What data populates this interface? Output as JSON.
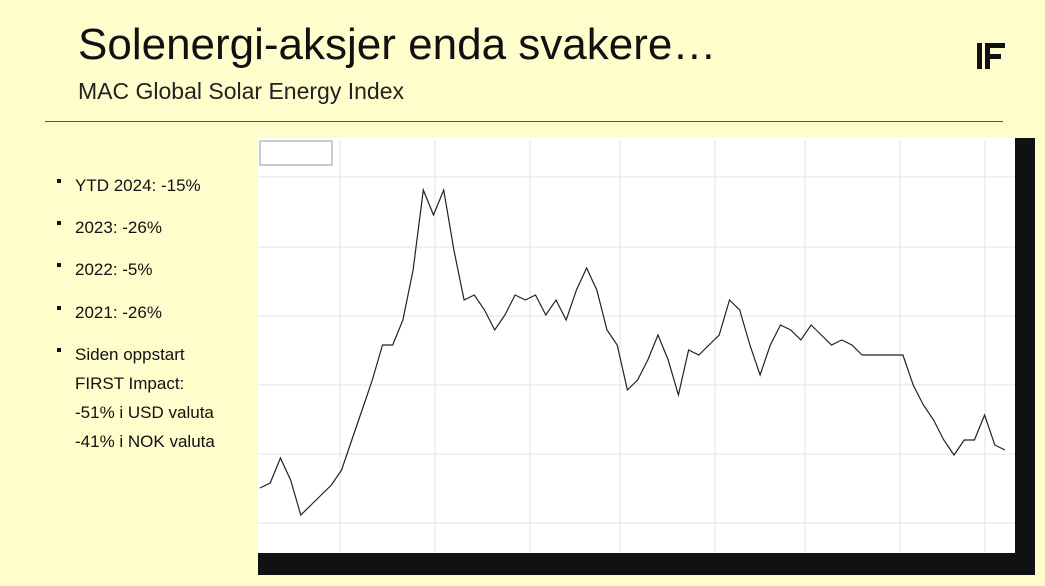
{
  "header": {
    "title": "Solenergi-aksjer enda svakere…",
    "subtitle": "MAC Global Solar Energy Index"
  },
  "bullets": [
    "YTD 2024: -15%",
    "2023: -26%",
    "2022: -5%",
    "2021: -26%"
  ],
  "note_bullet": [
    "Siden oppstart",
    "FIRST Impact:",
    "-51% i USD valuta",
    "-41% i NOK valuta"
  ],
  "chart_data": {
    "type": "line",
    "color": "#222222",
    "ylim": [
      0,
      413
    ],
    "values": [
      65,
      70,
      95,
      73,
      38,
      48,
      58,
      68,
      83,
      113,
      143,
      173,
      208,
      208,
      233,
      283,
      363,
      338,
      363,
      303,
      253,
      258,
      243,
      223,
      238,
      258,
      253,
      258,
      238,
      253,
      233,
      263,
      285,
      263,
      223,
      208,
      163,
      173,
      193,
      218,
      193,
      158,
      203,
      198,
      208,
      218,
      253,
      243,
      208,
      178,
      208,
      228,
      223,
      213,
      228,
      218,
      208,
      213,
      208,
      198,
      198,
      198,
      198,
      198,
      168,
      148,
      133,
      113,
      98,
      113,
      113,
      138,
      108,
      103
    ]
  }
}
